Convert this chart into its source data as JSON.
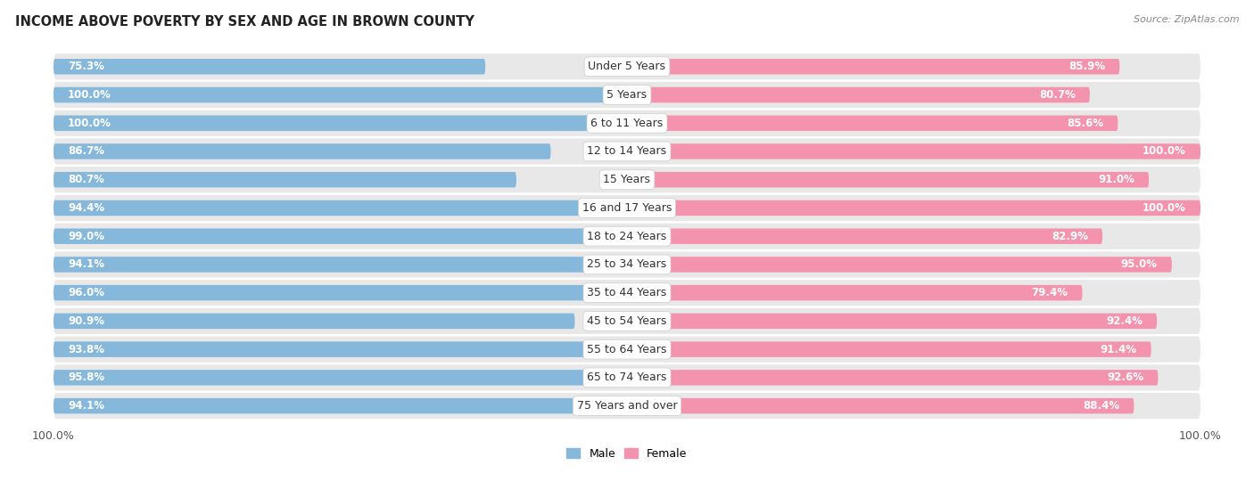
{
  "title": "INCOME ABOVE POVERTY BY SEX AND AGE IN BROWN COUNTY",
  "source": "Source: ZipAtlas.com",
  "categories": [
    "Under 5 Years",
    "5 Years",
    "6 to 11 Years",
    "12 to 14 Years",
    "15 Years",
    "16 and 17 Years",
    "18 to 24 Years",
    "25 to 34 Years",
    "35 to 44 Years",
    "45 to 54 Years",
    "55 to 64 Years",
    "65 to 74 Years",
    "75 Years and over"
  ],
  "male_values": [
    75.3,
    100.0,
    100.0,
    86.7,
    80.7,
    94.4,
    99.0,
    94.1,
    96.0,
    90.9,
    93.8,
    95.8,
    94.1
  ],
  "female_values": [
    85.9,
    80.7,
    85.6,
    100.0,
    91.0,
    100.0,
    82.9,
    95.0,
    79.4,
    92.4,
    91.4,
    92.6,
    88.4
  ],
  "male_color": "#85b8db",
  "female_color": "#f493ae",
  "male_label": "Male",
  "female_label": "Female",
  "bg_bar_color": "#e8e8e8",
  "value_color": "white",
  "label_color": "#333333",
  "title_color": "#222222",
  "source_color": "#888888",
  "axis_tick_color": "#555555",
  "label_fontsize": 9.0,
  "value_fontsize": 8.5,
  "title_fontsize": 10.5,
  "source_fontsize": 8.0,
  "axis_label_fontsize": 9.0,
  "bottom_labels": [
    "100.0%",
    "100.0%"
  ]
}
